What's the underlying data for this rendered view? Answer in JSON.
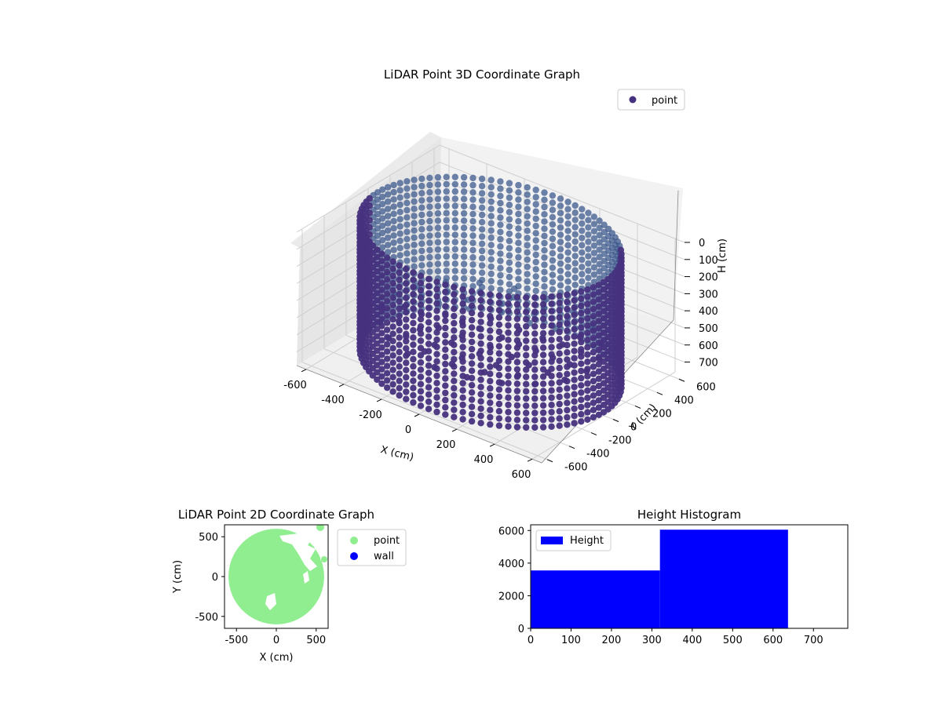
{
  "colors": {
    "point_3d": "#46317e",
    "point_3d_far": "#3d5a8e",
    "point_2d": "#90ee90",
    "wall": "#0000ff",
    "histogram": "#0000ff",
    "pane": "#f2f2f2",
    "grid": "#cfcfcf"
  },
  "chart_data": [
    {
      "type": "scatter3d",
      "title": "LiDAR Point 3D Coordinate Graph",
      "xlabel": "X (cm)",
      "ylabel": "Y (cm)",
      "zlabel": "H (cm)",
      "xlim": [
        -650,
        650
      ],
      "ylim": [
        -650,
        650
      ],
      "zlim": [
        0,
        780
      ],
      "z_inverted": true,
      "xticks": [
        -600,
        -400,
        -200,
        0,
        200,
        400,
        600
      ],
      "yticks": [
        -600,
        -400,
        -200,
        0,
        200,
        400,
        600
      ],
      "zticks": [
        0,
        100,
        200,
        300,
        400,
        500,
        600,
        700
      ],
      "legend": {
        "entries": [
          "point"
        ],
        "position": "top-right"
      },
      "series": [
        {
          "name": "point",
          "shape": "cylinder",
          "radius": 600,
          "center": [
            0,
            0
          ],
          "height_range": [
            0,
            760
          ]
        }
      ],
      "grid": true
    },
    {
      "type": "scatter",
      "title": "LiDAR Point 2D Coordinate Graph",
      "xlabel": "X (cm)",
      "ylabel": "Y (cm)",
      "xlim": [
        -650,
        650
      ],
      "ylim": [
        -650,
        650
      ],
      "xticks": [
        -500,
        0,
        500
      ],
      "yticks": [
        -500,
        0,
        500
      ],
      "legend": {
        "entries": [
          "point",
          "wall"
        ],
        "position": "outside-right"
      },
      "series": [
        {
          "name": "point",
          "shape": "disk",
          "center": [
            0,
            0
          ],
          "radius": 600
        },
        {
          "name": "wall",
          "points": []
        }
      ]
    },
    {
      "type": "bar",
      "title": "Height Histogram",
      "xlabel": "",
      "ylabel": "",
      "xlim": [
        0,
        785
      ],
      "ylim": [
        0,
        6350
      ],
      "xticks": [
        0,
        100,
        200,
        300,
        400,
        500,
        600,
        700
      ],
      "yticks": [
        0,
        2000,
        4000,
        6000
      ],
      "legend": {
        "entries": [
          "Height"
        ],
        "position": "top-left"
      },
      "bins": [
        {
          "x0": 0,
          "x1": 320,
          "count": 3550
        },
        {
          "x0": 320,
          "x1": 637,
          "count": 6050
        },
        {
          "x0": 637,
          "x1": 785,
          "count": 25
        }
      ]
    }
  ]
}
